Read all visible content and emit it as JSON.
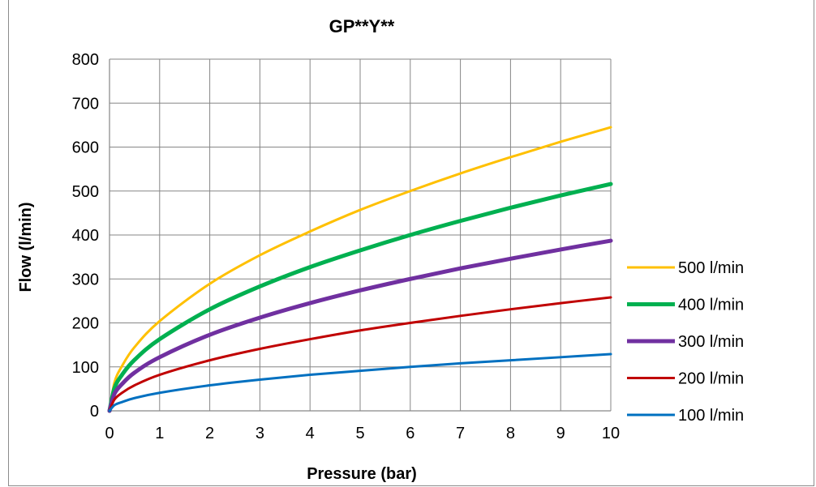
{
  "chart_data": {
    "type": "line",
    "title": "GP**Y**",
    "xlabel": "Pressure (bar)",
    "ylabel": "Flow (l/min)",
    "xlim": [
      0,
      10
    ],
    "ylim": [
      0,
      800
    ],
    "x_ticks": [
      0,
      1,
      2,
      3,
      4,
      5,
      6,
      7,
      8,
      9,
      10
    ],
    "y_ticks": [
      0,
      100,
      200,
      300,
      400,
      500,
      600,
      700,
      800
    ],
    "grid": true,
    "legend_position": "right",
    "x": [
      0,
      0.1,
      0.25,
      0.5,
      1,
      2,
      3,
      4,
      5,
      6,
      7,
      8,
      9,
      10
    ],
    "series": [
      {
        "name": "500 l/min",
        "color": "#FFC000",
        "values": [
          0,
          65,
          102,
          145,
          204,
          289,
          354,
          408,
          457,
          500,
          540,
          577,
          612,
          645
        ]
      },
      {
        "name": "400 l/min",
        "color": "#00B050",
        "values": [
          0,
          52,
          82,
          116,
          163,
          231,
          283,
          327,
          365,
          400,
          432,
          462,
          490,
          516
        ]
      },
      {
        "name": "300 l/min",
        "color": "#7030A0",
        "values": [
          0,
          39,
          61,
          87,
          122,
          173,
          212,
          245,
          274,
          300,
          324,
          346,
          367,
          387
        ]
      },
      {
        "name": "200 l/min",
        "color": "#C00000",
        "values": [
          0,
          26,
          41,
          58,
          82,
          115,
          141,
          163,
          183,
          200,
          216,
          231,
          245,
          258
        ]
      },
      {
        "name": "100 l/min",
        "color": "#0070C0",
        "values": [
          0,
          13,
          20,
          29,
          41,
          58,
          71,
          82,
          91,
          100,
          108,
          115,
          122,
          129
        ]
      }
    ]
  }
}
